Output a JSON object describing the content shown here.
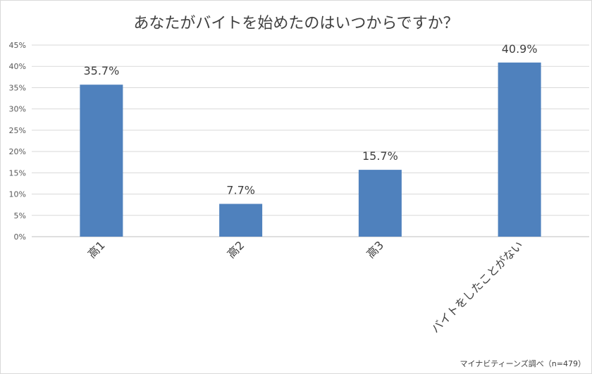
{
  "chart_data": {
    "type": "bar",
    "title": "あなたがバイトを始めたのはいつからですか？",
    "categories": [
      "高1",
      "高2",
      "高3",
      "バイトをしたことがない"
    ],
    "values": [
      35.7,
      7.7,
      15.7,
      40.9
    ],
    "data_labels": [
      "35.7%",
      "7.7%",
      "15.7%",
      "40.9%"
    ],
    "y_ticks": [
      "0%",
      "5%",
      "10%",
      "15%",
      "20%",
      "25%",
      "30%",
      "35%",
      "40%",
      "45%"
    ],
    "ylim": [
      0,
      45
    ],
    "grid": true,
    "bar_color": "#4f81bd",
    "source": "マイナビティーンズ調べ（n=479）"
  }
}
